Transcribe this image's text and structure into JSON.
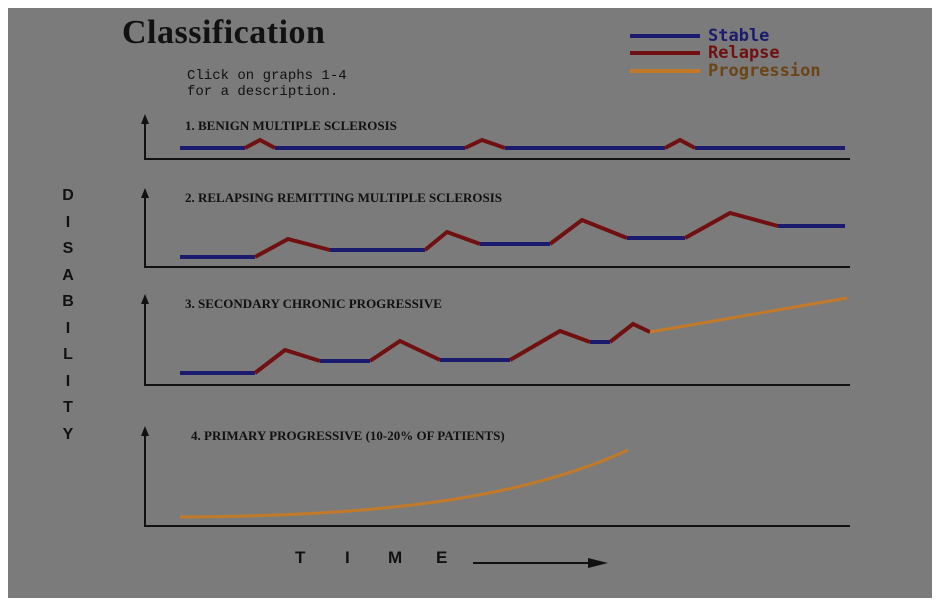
{
  "title": "Classification",
  "instructions": [
    "Click on graphs 1-4",
    "for a description."
  ],
  "legend": [
    {
      "label": "Stable",
      "color": "#1a1a6e",
      "text_color": "#1a1a6e"
    },
    {
      "label": "Relapse",
      "color": "#701010",
      "text_color": "#701010"
    },
    {
      "label": "Progression",
      "color": "#c27a2a",
      "text_color": "#6b4516"
    }
  ],
  "y_axis_label": [
    "D",
    "I",
    "S",
    "A",
    "B",
    "I",
    "L",
    "I",
    "T",
    "Y"
  ],
  "x_axis_label": [
    "T",
    "I",
    "M",
    "E"
  ],
  "colors": {
    "stable": "#1a1a6e",
    "relapse": "#701010",
    "progression": "#c27a2a",
    "axis": "#111111",
    "background": "#7b7b7b"
  },
  "graphs": [
    {
      "number": 1,
      "title": "1. BENIGN MULTIPLE SCLEROSIS"
    },
    {
      "number": 2,
      "title": "2. RELAPSING REMITTING MULTIPLE SCLEROSIS"
    },
    {
      "number": 3,
      "title": "3. SECONDARY CHRONIC PROGRESSIVE"
    },
    {
      "number": 4,
      "title": "4. PRIMARY PROGRESSIVE  (10-20% OF PATIENTS)"
    }
  ]
}
